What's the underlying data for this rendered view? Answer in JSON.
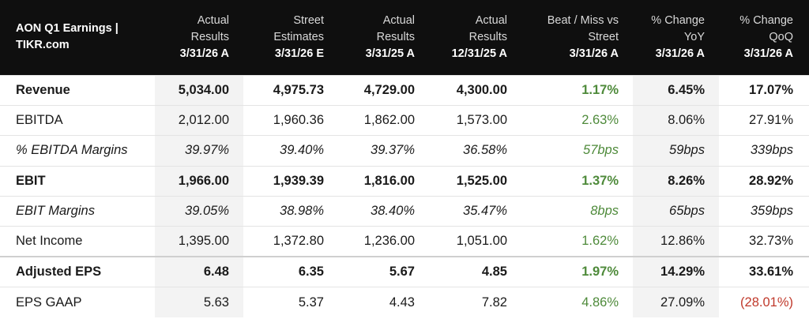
{
  "header": {
    "title": "AON Q1 Earnings | TIKR.com",
    "columns": [
      {
        "label": "Actual Results",
        "date": "3/31/26 A"
      },
      {
        "label": "Street Estimates",
        "date": "3/31/26 E"
      },
      {
        "label": "Actual Results",
        "date": "3/31/25 A"
      },
      {
        "label": "Actual Results",
        "date": "12/31/25 A"
      },
      {
        "label": "Beat / Miss vs Street",
        "date": "3/31/26 A"
      },
      {
        "label": "% Change YoY",
        "date": "3/31/26 A"
      },
      {
        "label": "% Change QoQ",
        "date": "3/31/26 A"
      }
    ]
  },
  "rows": [
    {
      "name": "Revenue",
      "values": [
        "5,034.00",
        "4,975.73",
        "4,729.00",
        "4,300.00",
        "1.17%",
        "6.45%",
        "17.07%"
      ]
    },
    {
      "name": "EBITDA",
      "values": [
        "2,012.00",
        "1,960.36",
        "1,862.00",
        "1,573.00",
        "2.63%",
        "8.06%",
        "27.91%"
      ]
    },
    {
      "name": "% EBITDA Margins",
      "values": [
        "39.97%",
        "39.40%",
        "39.37%",
        "36.58%",
        "57bps",
        "59bps",
        "339bps"
      ]
    },
    {
      "name": "EBIT",
      "values": [
        "1,966.00",
        "1,939.39",
        "1,816.00",
        "1,525.00",
        "1.37%",
        "8.26%",
        "28.92%"
      ]
    },
    {
      "name": "EBIT Margins",
      "values": [
        "39.05%",
        "38.98%",
        "38.40%",
        "35.47%",
        "8bps",
        "65bps",
        "359bps"
      ]
    },
    {
      "name": "Net Income",
      "values": [
        "1,395.00",
        "1,372.80",
        "1,236.00",
        "1,051.00",
        "1.62%",
        "12.86%",
        "32.73%"
      ]
    },
    {
      "name": "Adjusted EPS",
      "values": [
        "6.48",
        "6.35",
        "5.67",
        "4.85",
        "1.97%",
        "14.29%",
        "33.61%"
      ]
    },
    {
      "name": "EPS GAAP",
      "values": [
        "5.63",
        "5.37",
        "4.43",
        "7.82",
        "4.86%",
        "27.09%",
        "(28.01%)"
      ]
    }
  ],
  "colors": {
    "header_bg": "#0f0f0f",
    "beat_green": "#4e8a3a",
    "negative_red": "#c0392b",
    "shade": "#f3f3f3"
  }
}
